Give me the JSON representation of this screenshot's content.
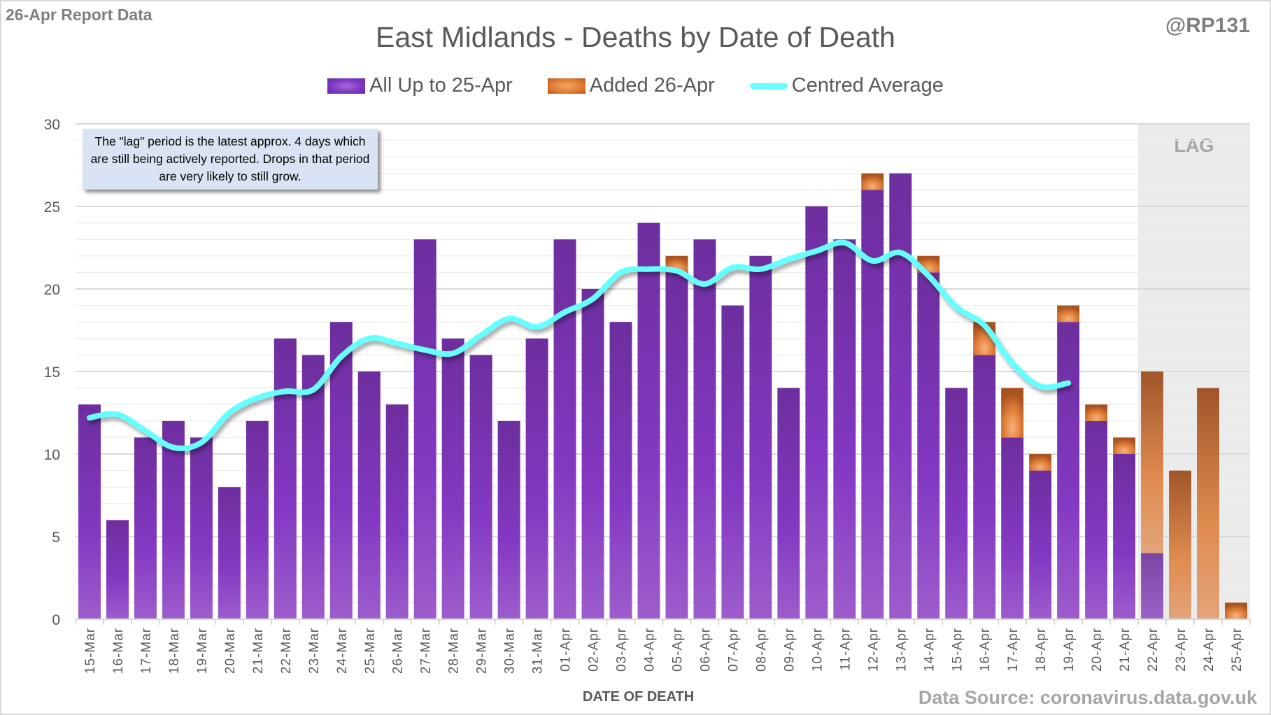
{
  "report_label": "26-Apr Report Data",
  "handle": "@RP131",
  "note": "The \"lag\" period is the latest approx. 4 days which are still being actively reported. Drops in that period are very likely to still grow.",
  "source": "Data Source: coronavirus.data.gov.uk",
  "colors": {
    "existing": "#7b35c0",
    "added": "#e07a30",
    "average": "#66ffff",
    "lag_region": "#ebebeb"
  },
  "chart_data": {
    "type": "bar",
    "stacked": true,
    "title": "East Midlands - Deaths by Date of Death",
    "xlabel": "DATE OF DEATH",
    "ylabel": "",
    "ylim": [
      0,
      30
    ],
    "yticks": [
      0,
      5,
      10,
      15,
      20,
      25,
      30
    ],
    "grid": true,
    "legend": "top-center",
    "lag_label": "LAG",
    "lag_categories": [
      "22-Apr",
      "23-Apr",
      "24-Apr",
      "25-Apr"
    ],
    "categories": [
      "15-Mar",
      "16-Mar",
      "17-Mar",
      "18-Mar",
      "19-Mar",
      "20-Mar",
      "21-Mar",
      "22-Mar",
      "23-Mar",
      "24-Mar",
      "25-Mar",
      "26-Mar",
      "27-Mar",
      "28-Mar",
      "29-Mar",
      "30-Mar",
      "31-Mar",
      "01-Apr",
      "02-Apr",
      "03-Apr",
      "04-Apr",
      "05-Apr",
      "06-Apr",
      "07-Apr",
      "08-Apr",
      "09-Apr",
      "10-Apr",
      "11-Apr",
      "12-Apr",
      "13-Apr",
      "14-Apr",
      "15-Apr",
      "16-Apr",
      "17-Apr",
      "18-Apr",
      "19-Apr",
      "20-Apr",
      "21-Apr",
      "22-Apr",
      "23-Apr",
      "24-Apr",
      "25-Apr"
    ],
    "series": [
      {
        "name": "All Up to 25-Apr",
        "kind": "bar",
        "values": [
          13,
          6,
          11,
          12,
          11,
          8,
          12,
          17,
          16,
          18,
          15,
          13,
          23,
          17,
          16,
          12,
          17,
          23,
          20,
          18,
          24,
          21,
          23,
          19,
          22,
          14,
          25,
          23,
          26,
          27,
          21,
          14,
          16,
          11,
          9,
          18,
          12,
          10,
          4,
          0,
          0,
          0
        ]
      },
      {
        "name": "Added 26-Apr",
        "kind": "bar",
        "values": [
          0,
          0,
          0,
          0,
          0,
          0,
          0,
          0,
          0,
          0,
          0,
          0,
          0,
          0,
          0,
          0,
          0,
          0,
          0,
          0,
          0,
          1,
          0,
          0,
          0,
          0,
          0,
          0,
          1,
          0,
          1,
          0,
          2,
          3,
          1,
          1,
          1,
          1,
          11,
          9,
          14,
          1
        ]
      },
      {
        "name": "Centred Average",
        "kind": "line",
        "values": [
          12.2,
          12.4,
          11.4,
          10.4,
          10.7,
          12.5,
          13.4,
          13.8,
          13.9,
          15.9,
          17.0,
          16.7,
          16.3,
          16.1,
          17.2,
          18.2,
          17.7,
          18.6,
          19.4,
          21.0,
          21.2,
          21.1,
          20.3,
          21.3,
          21.2,
          21.8,
          22.3,
          22.8,
          21.7,
          22.2,
          20.8,
          18.9,
          17.8,
          15.5,
          14.1,
          14.3,
          null,
          null,
          null,
          null,
          null,
          null
        ]
      }
    ]
  }
}
